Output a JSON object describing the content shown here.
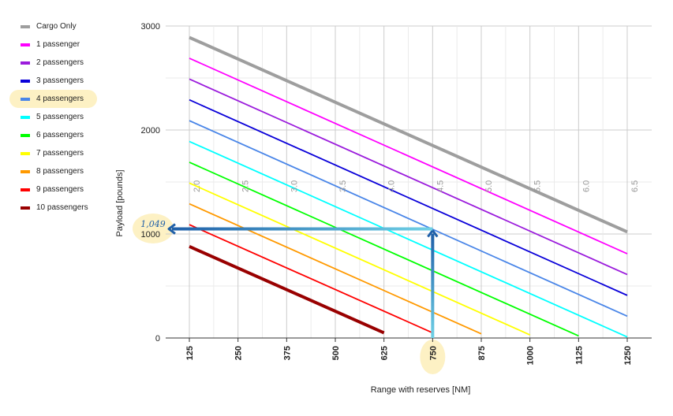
{
  "chart_data": {
    "type": "line",
    "title": "",
    "xlabel": "Range with reserves [NM]",
    "ylabel": "Payload [pounds]",
    "xlim": [
      125,
      1250
    ],
    "ylim": [
      0,
      3000
    ],
    "x_ticks": [
      "125",
      "250",
      "375",
      "500",
      "625",
      "750",
      "875",
      "1000",
      "1125",
      "1250"
    ],
    "y_ticks": [
      "0",
      "1000",
      "2000",
      "3000"
    ],
    "legend_position": "left",
    "series": [
      {
        "name": "Cargo Only",
        "color": "#9e9e9e",
        "points": [
          [
            125,
            2890
          ],
          [
            1250,
            1020
          ]
        ]
      },
      {
        "name": "1 passenger",
        "color": "#ff00ff",
        "points": [
          [
            125,
            2690
          ],
          [
            1250,
            810
          ]
        ]
      },
      {
        "name": "2 passengers",
        "color": "#9b1cdc",
        "points": [
          [
            125,
            2490
          ],
          [
            1250,
            610
          ]
        ]
      },
      {
        "name": "3 passengers",
        "color": "#0a00d9",
        "points": [
          [
            125,
            2290
          ],
          [
            1250,
            410
          ]
        ]
      },
      {
        "name": "4 passengers",
        "color": "#4a86e8",
        "points": [
          [
            125,
            2090
          ],
          [
            1250,
            210
          ]
        ]
      },
      {
        "name": "5 passengers",
        "color": "#00ffff",
        "points": [
          [
            125,
            1890
          ],
          [
            1250,
            10
          ]
        ]
      },
      {
        "name": "6 passengers",
        "color": "#00ff00",
        "points": [
          [
            125,
            1690
          ],
          [
            1125,
            20
          ]
        ]
      },
      {
        "name": "7 passengers",
        "color": "#ffff00",
        "points": [
          [
            125,
            1490
          ],
          [
            1000,
            30
          ]
        ]
      },
      {
        "name": "8 passengers",
        "color": "#ff9900",
        "points": [
          [
            125,
            1290
          ],
          [
            875,
            40
          ]
        ]
      },
      {
        "name": "9 passengers",
        "color": "#ff0000",
        "points": [
          [
            125,
            1090
          ],
          [
            750,
            50
          ]
        ]
      },
      {
        "name": "10 passengers",
        "color": "#990000",
        "points": [
          [
            125,
            880
          ],
          [
            625,
            50
          ]
        ]
      }
    ],
    "hours_labels": [
      {
        "text": "2.0",
        "x": 125
      },
      {
        "text": "2.5",
        "x": 250
      },
      {
        "text": "3.0",
        "x": 375
      },
      {
        "text": "3.5",
        "x": 500
      },
      {
        "text": "4.0",
        "x": 625
      },
      {
        "text": "4.5",
        "x": 750
      },
      {
        "text": "5.0",
        "x": 875
      },
      {
        "text": "5.5",
        "x": 1000
      },
      {
        "text": "6.0",
        "x": 1125
      },
      {
        "text": "6.5",
        "x": 1250
      }
    ],
    "annotation": {
      "handwritten_value": "1,049",
      "payload": 1049,
      "range": 750,
      "arrow_color": "#1f5fa8",
      "highlight_color": "#fdf1c4",
      "highlighted_series": "4 passengers",
      "highlighted_x_tick": "750"
    }
  }
}
